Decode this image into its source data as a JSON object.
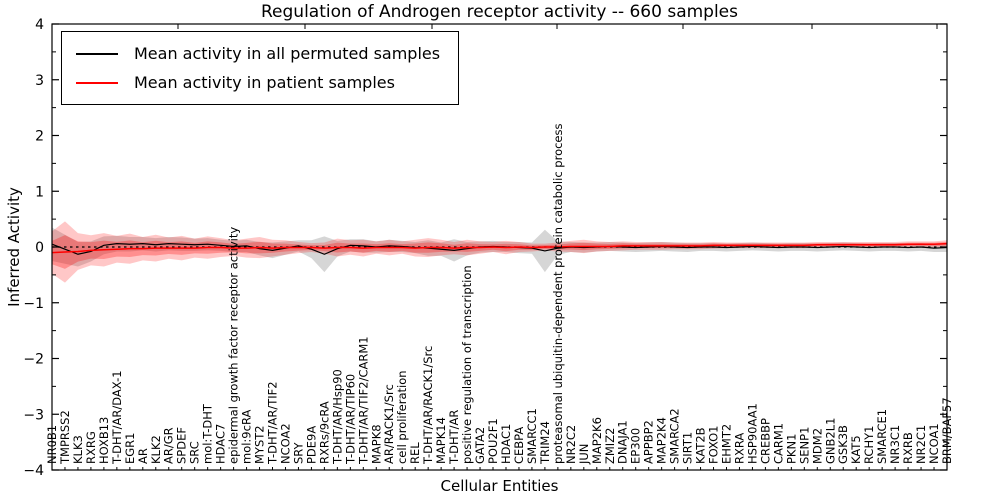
{
  "title": "Regulation of Androgen receptor activity -- 660 samples",
  "legend": {
    "items": [
      {
        "label": "Mean activity in all permuted samples",
        "color": "#000000"
      },
      {
        "label": "Mean activity in patient samples",
        "color": "#ff0000"
      }
    ]
  },
  "chart_data": {
    "type": "line",
    "title": "Regulation of Androgen receptor activity -- 660 samples",
    "xlabel": "Cellular Entities",
    "ylabel": "Inferred Activity",
    "ylim": [
      -4,
      4
    ],
    "y_major_ticks": [
      -4,
      -3,
      -2,
      -1,
      0,
      1,
      2,
      3,
      4
    ],
    "y_minor_step": 0.5,
    "grid": false,
    "legend_position": "upper left",
    "zero_line": {
      "y": 0,
      "style": "dashed",
      "color": "#000000"
    },
    "colors": {
      "permuted_line": "#000000",
      "patient_line": "#ff0000",
      "permuted_band": "#808080",
      "patient_band": "#ff0000"
    },
    "categories": [
      "NR0B1",
      "TMPRSS2",
      "KLK3",
      "RXRG",
      "HOXB13",
      "T-DHT/AR/DAX-1",
      "EGR1",
      "AR",
      "KLK2",
      "AR/GR",
      "SPDEF",
      "SRC",
      "mol:T-DHT",
      "HDAC7",
      "epidermal growth factor receptor activity",
      "mol:9cRA",
      "MYST2",
      "T-DHT/AR/TIF2",
      "NCOA2",
      "SRY",
      "PDE9A",
      "RXRs/9cRA",
      "T-DHT/AR/Hsp90",
      "T-DHT/AR/TIP60",
      "T-DHT/AR/TIF2/CARM1",
      "MAPK8",
      "AR/RACK1/Src",
      "cell proliferation",
      "REL",
      "T-DHT/AR/RACK1/Src",
      "MAPK14",
      "T-DHT/AR",
      "positive regulation of transcription",
      "GATA2",
      "POU2F1",
      "HDAC1",
      "CEBPA",
      "SMARCC1",
      "TRIM24",
      "proteasomal ubiquitin-dependent protein catabolic process",
      "NR2C2",
      "JUN",
      "MAP2K6",
      "ZMIZ2",
      "DNAJA1",
      "EP300",
      "APPBP2",
      "MAP2K4",
      "SMARCA2",
      "SIRT1",
      "KAT2B",
      "FOXO1",
      "EHMT2",
      "RXRA",
      "HSP90AA1",
      "CREBBP",
      "CARM1",
      "PKN1",
      "SENP1",
      "MDM2",
      "GNB2L1",
      "GSK3B",
      "KAT5",
      "RCHY1",
      "SMARCE1",
      "NR3C1",
      "RXRB",
      "NR2C1",
      "NCOA1",
      "BRM/BAF57"
    ],
    "series": [
      {
        "name": "Mean activity in all permuted samples",
        "color": "#000000",
        "values": [
          0.05,
          -0.04,
          -0.13,
          -0.08,
          0.03,
          0.06,
          0.05,
          0.06,
          0.04,
          0.06,
          0.05,
          0.04,
          0.05,
          0.03,
          0.01,
          0.02,
          -0.03,
          -0.06,
          -0.02,
          0.02,
          -0.04,
          -0.13,
          -0.03,
          0.03,
          0.02,
          0.0,
          0.02,
          0.01,
          -0.01,
          -0.02,
          -0.04,
          -0.06,
          -0.03,
          0.0,
          0.01,
          0.0,
          -0.01,
          -0.02,
          -0.07,
          -0.02,
          0.0,
          -0.01,
          0.0,
          0.01,
          0.0,
          -0.01,
          0.0,
          0.01,
          0.0,
          -0.01,
          0.0,
          0.0,
          -0.01,
          0.0,
          0.01,
          0.0,
          -0.01,
          0.0,
          0.0,
          -0.01,
          0.0,
          0.01,
          0.0,
          -0.01,
          0.0,
          0.0,
          -0.01,
          0.0,
          -0.02,
          -0.01
        ]
      },
      {
        "name": "Mean activity in patient samples",
        "color": "#ff0000",
        "values": [
          -0.1,
          -0.09,
          -0.08,
          -0.06,
          -0.05,
          -0.04,
          -0.03,
          -0.03,
          -0.02,
          -0.02,
          -0.02,
          -0.02,
          -0.01,
          -0.01,
          -0.02,
          -0.02,
          -0.01,
          -0.02,
          -0.01,
          -0.01,
          -0.01,
          -0.02,
          -0.01,
          -0.01,
          -0.02,
          -0.01,
          -0.01,
          -0.01,
          -0.02,
          -0.01,
          -0.01,
          -0.02,
          -0.01,
          -0.01,
          0.0,
          -0.01,
          0.0,
          -0.01,
          0.0,
          0.0,
          0.01,
          0.01,
          0.01,
          0.01,
          0.02,
          0.02,
          0.02,
          0.02,
          0.02,
          0.02,
          0.02,
          0.03,
          0.03,
          0.03,
          0.03,
          0.03,
          0.03,
          0.03,
          0.03,
          0.04,
          0.04,
          0.04,
          0.04,
          0.04,
          0.04,
          0.04,
          0.05,
          0.05,
          0.05,
          0.06
        ]
      }
    ],
    "bands": [
      {
        "name": "permuted-std-band",
        "center_series": 0,
        "half_widths": [
          0.3,
          0.26,
          0.22,
          0.18,
          0.16,
          0.14,
          0.13,
          0.12,
          0.12,
          0.12,
          0.12,
          0.11,
          0.11,
          0.1,
          0.1,
          0.11,
          0.12,
          0.14,
          0.12,
          0.1,
          0.16,
          0.32,
          0.14,
          0.11,
          0.12,
          0.1,
          0.11,
          0.1,
          0.1,
          0.14,
          0.12,
          0.2,
          0.12,
          0.1,
          0.1,
          0.09,
          0.1,
          0.1,
          0.38,
          0.12,
          0.09,
          0.09,
          0.08,
          0.08,
          0.08,
          0.08,
          0.08,
          0.08,
          0.08,
          0.08,
          0.07,
          0.07,
          0.07,
          0.07,
          0.07,
          0.07,
          0.07,
          0.07,
          0.07,
          0.07,
          0.07,
          0.07,
          0.07,
          0.07,
          0.07,
          0.07,
          0.07,
          0.07,
          0.07,
          0.08
        ]
      },
      {
        "name": "patient-std-band",
        "center_series": 1,
        "half_widths": [
          0.38,
          0.55,
          0.33,
          0.27,
          0.3,
          0.24,
          0.27,
          0.21,
          0.24,
          0.19,
          0.22,
          0.17,
          0.2,
          0.17,
          0.14,
          0.17,
          0.19,
          0.15,
          0.13,
          0.1,
          0.08,
          0.1,
          0.16,
          0.13,
          0.15,
          0.11,
          0.14,
          0.11,
          0.15,
          0.17,
          0.14,
          0.11,
          0.14,
          0.11,
          0.09,
          0.12,
          0.09,
          0.07,
          0.06,
          0.08,
          0.1,
          0.12,
          0.09,
          0.08,
          0.08,
          0.07,
          0.07,
          0.07,
          0.06,
          0.06,
          0.06,
          0.06,
          0.05,
          0.05,
          0.05,
          0.05,
          0.05,
          0.05,
          0.05,
          0.05,
          0.05,
          0.05,
          0.05,
          0.05,
          0.05,
          0.05,
          0.05,
          0.05,
          0.05,
          0.06
        ]
      }
    ]
  }
}
